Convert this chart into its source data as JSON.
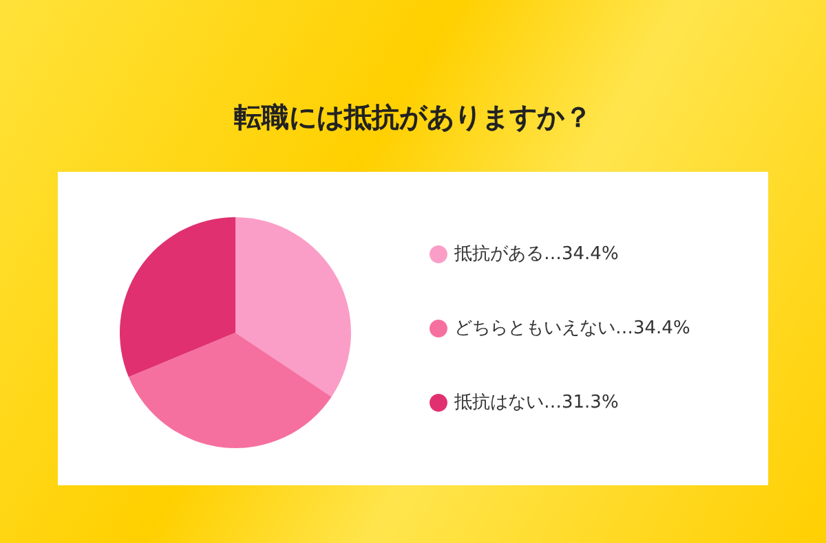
{
  "chart_data": {
    "type": "pie",
    "title": "転職には抵抗がありますか？",
    "categories": [
      "抵抗がある",
      "どちらともいえない",
      "抵抗はない"
    ],
    "values": [
      34.4,
      34.4,
      31.3
    ],
    "value_labels": [
      "…34.4%",
      "…34.4%",
      "…31.3%"
    ],
    "colors": [
      "#fa9ec8",
      "#f5709f",
      "#e0306f"
    ],
    "legend": "right"
  }
}
